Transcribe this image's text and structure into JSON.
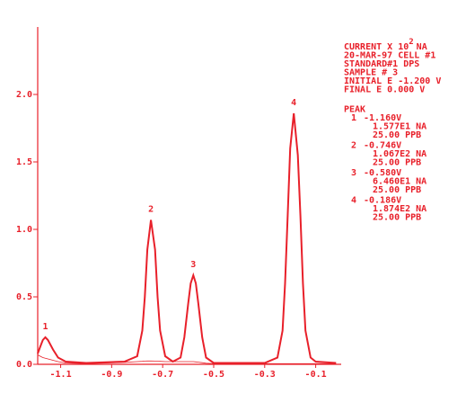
{
  "chart_data": {
    "type": "line",
    "x": [
      -1.19,
      -1.18,
      -1.17,
      -1.16,
      -1.15,
      -1.13,
      -1.11,
      -1.08,
      -1.0,
      -0.85,
      -0.8,
      -0.78,
      -0.77,
      -0.76,
      -0.746,
      -0.73,
      -0.72,
      -0.71,
      -0.69,
      -0.66,
      -0.63,
      -0.615,
      -0.6,
      -0.59,
      -0.58,
      -0.57,
      -0.56,
      -0.545,
      -0.53,
      -0.5,
      -0.3,
      -0.25,
      -0.23,
      -0.22,
      -0.21,
      -0.2,
      -0.186,
      -0.17,
      -0.16,
      -0.15,
      -0.14,
      -0.12,
      -0.1,
      -0.02
    ],
    "series": [
      {
        "color": "#e8202a",
        "values": [
          0.08,
          0.13,
          0.18,
          0.2,
          0.18,
          0.11,
          0.05,
          0.02,
          0.01,
          0.02,
          0.06,
          0.25,
          0.5,
          0.85,
          1.07,
          0.85,
          0.5,
          0.25,
          0.06,
          0.02,
          0.05,
          0.2,
          0.45,
          0.6,
          0.66,
          0.6,
          0.45,
          0.2,
          0.05,
          0.01,
          0.01,
          0.05,
          0.25,
          0.6,
          1.1,
          1.6,
          1.86,
          1.55,
          1.1,
          0.6,
          0.25,
          0.05,
          0.02,
          0.01
        ]
      },
      {
        "color": "#e8202a",
        "values": [
          0.07,
          0.06,
          0.05,
          0.045,
          0.04,
          0.03,
          0.02,
          0.01,
          0.005,
          0.015,
          0.02,
          0.022,
          0.024,
          0.025,
          0.025,
          0.024,
          0.023,
          0.022,
          0.02,
          0.02,
          0.02,
          0.02,
          0.02,
          0.02,
          0.02,
          0.018,
          0.016,
          0.012,
          0.008,
          0.005,
          0.005,
          0.005,
          0.005,
          0.005,
          0.005,
          0.005,
          0.005,
          0.005,
          0.005,
          0.005,
          0.005,
          0.005,
          0.005,
          0.005
        ]
      }
    ],
    "xlim": [
      -1.19,
      0.0
    ],
    "ylim": [
      0,
      2.5
    ],
    "xticks": [
      -1.1,
      -0.9,
      -0.7,
      -0.5,
      -0.3,
      -0.1
    ],
    "yticks": [
      {
        "value": 0,
        "label": "0.0"
      },
      {
        "value": 0.5,
        "label": "0.5"
      },
      {
        "value": 1,
        "label": "1.0"
      },
      {
        "value": 1.5,
        "label": "1.5"
      },
      {
        "value": 2,
        "label": "2.0"
      }
    ],
    "grid": false,
    "header": {
      "current_label": "CURRENT X 10",
      "current_exponent": "2",
      "current_unit": "NA",
      "lines": [
        "20-MAR-97  CELL #1",
        "STANDARD#1 DPS",
        "SAMPLE #    3",
        "INITIAL E -1.200 V",
        "FINAL E    0.000 V"
      ],
      "peak_heading": "PEAK"
    },
    "peaks": [
      {
        "number": "1",
        "potential": "-1.160V",
        "current": "1.577E1 NA",
        "conc": "25.00 PPB"
      },
      {
        "number": "2",
        "potential": "-0.746V",
        "current": "1.067E2 NA",
        "conc": "25.00 PPB"
      },
      {
        "number": "3",
        "potential": "-0.580V",
        "current": "6.460E1 NA",
        "conc": "25.00 PPB"
      },
      {
        "number": "4",
        "potential": "-0.186V",
        "current": "1.874E2 NA",
        "conc": "25.00 PPB"
      }
    ]
  }
}
